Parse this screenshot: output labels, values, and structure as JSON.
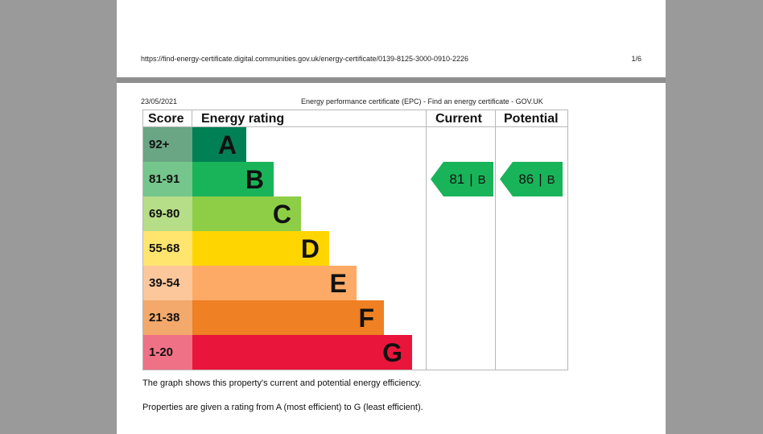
{
  "footer": {
    "url": "https://find-energy-certificate.digital.communities.gov.uk/energy-certificate/0139-8125-3000-0910-2226",
    "page": "1/6"
  },
  "header": {
    "date": "23/05/2021",
    "title": "Energy performance certificate (EPC) - Find an energy certificate - GOV.UK"
  },
  "epc": {
    "col_score": "Score",
    "col_rating": "Energy rating",
    "col_current": "Current",
    "col_potential": "Potential",
    "bands": [
      {
        "score": "92+",
        "letter": "A",
        "color": "#008054",
        "cell_color": "#6aa584"
      },
      {
        "score": "81-91",
        "letter": "B",
        "color": "#19b459",
        "cell_color": "#75c68c"
      },
      {
        "score": "69-80",
        "letter": "C",
        "color": "#8dce46",
        "cell_color": "#b6dd87"
      },
      {
        "score": "55-68",
        "letter": "D",
        "color": "#ffd500",
        "cell_color": "#ffe56e"
      },
      {
        "score": "39-54",
        "letter": "E",
        "color": "#fcaa65",
        "cell_color": "#fcc79b"
      },
      {
        "score": "21-38",
        "letter": "F",
        "color": "#ef8023",
        "cell_color": "#f3a96b"
      },
      {
        "score": "1-20",
        "letter": "G",
        "color": "#e9153b",
        "cell_color": "#ef7186"
      }
    ],
    "current": {
      "value": "81",
      "separator": "|",
      "band": "B",
      "color": "#19b459"
    },
    "potential": {
      "value": "86",
      "separator": "|",
      "band": "B",
      "color": "#19b459"
    }
  },
  "text": {
    "line1": "The graph shows this property's current and potential energy efficiency.",
    "line2": "Properties are given a rating from A (most efficient) to G (least efficient)."
  }
}
